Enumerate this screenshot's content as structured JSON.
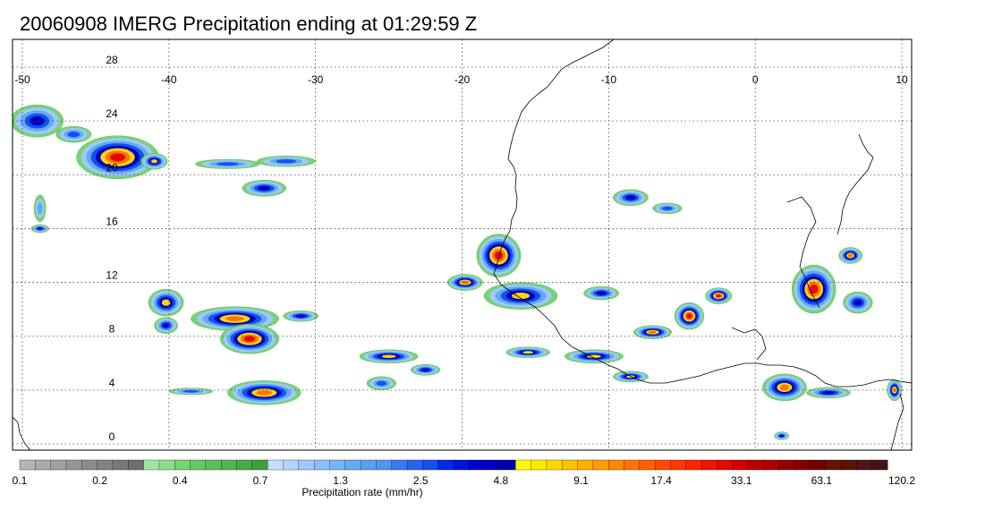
{
  "title": "20060908 IMERG Precipitation ending at 01:29:59 Z",
  "map": {
    "lon_range": [
      -50,
      10
    ],
    "lat_range": [
      -0.5,
      30
    ],
    "lon_ticks": [
      -50,
      -40,
      -30,
      -20,
      -10,
      0,
      10
    ],
    "lat_ticks": [
      0,
      4,
      8,
      12,
      16,
      20,
      24,
      28
    ],
    "gridlines": true,
    "coastline_color": "#000000",
    "lon_labels": [
      "-50",
      "-40",
      "-30",
      "-20",
      "-10",
      "0",
      "10"
    ],
    "lat_labels": [
      "0",
      "4",
      "8",
      "12",
      "16",
      "20",
      "24",
      "28"
    ]
  },
  "colorbar": {
    "label": "Precipitation rate (mm/hr)",
    "tick_labels": [
      "0.1",
      "0.2",
      "0.4",
      "0.7",
      "1.3",
      "2.5",
      "4.8",
      "9.1",
      "17.4",
      "33.1",
      "63.1",
      "120.2"
    ],
    "colors": [
      "#b4b4b4",
      "#aaaaaa",
      "#a0a0a0",
      "#969696",
      "#8c8c8c",
      "#828282",
      "#787878",
      "#6e6e6e",
      "#a0e6a0",
      "#8cdc8c",
      "#78d278",
      "#64c864",
      "#5abe5a",
      "#50b450",
      "#46aa46",
      "#3ca03c",
      "#c8dcff",
      "#b4d2ff",
      "#a0c8ff",
      "#8cbefa",
      "#78b4f5",
      "#64aaf0",
      "#5aa0f0",
      "#5096f0",
      "#3c78f0",
      "#2864f0",
      "#1450f0",
      "#0028e6",
      "#0014dc",
      "#0000d2",
      "#0000be",
      "#0000aa",
      "#ffff00",
      "#ffeb00",
      "#ffd700",
      "#ffc300",
      "#ffaf00",
      "#ff9b00",
      "#ff8700",
      "#ff7300",
      "#ff5f00",
      "#ff4b00",
      "#ff3700",
      "#ff2300",
      "#f01400",
      "#e10a00",
      "#d20000",
      "#be0000",
      "#aa0000",
      "#960000",
      "#820000",
      "#6e0000",
      "#641400",
      "#5a1400",
      "#501414",
      "#461414"
    ]
  },
  "precip_clusters": [
    {
      "lon": -49.0,
      "lat": 24.0,
      "rx": 1.8,
      "ry": 1.2,
      "peak": 2.5
    },
    {
      "lon": -46.5,
      "lat": 23.0,
      "rx": 1.2,
      "ry": 0.6,
      "peak": 1.3
    },
    {
      "lon": -43.5,
      "lat": 21.3,
      "rx": 2.8,
      "ry": 1.6,
      "peak": 17.4
    },
    {
      "lon": -41.0,
      "lat": 21.0,
      "rx": 0.9,
      "ry": 0.6,
      "peak": 4.8
    },
    {
      "lon": -36.0,
      "lat": 20.8,
      "rx": 2.2,
      "ry": 0.35,
      "peak": 1.3
    },
    {
      "lon": -32.0,
      "lat": 21.0,
      "rx": 2.0,
      "ry": 0.4,
      "peak": 1.3
    },
    {
      "lon": -33.5,
      "lat": 19.0,
      "rx": 1.5,
      "ry": 0.6,
      "peak": 2.5
    },
    {
      "lon": -48.8,
      "lat": 17.5,
      "rx": 0.4,
      "ry": 1.0,
      "peak": 0.7
    },
    {
      "lon": -48.8,
      "lat": 16.0,
      "rx": 0.6,
      "ry": 0.3,
      "peak": 2.5
    },
    {
      "lon": -40.2,
      "lat": 10.5,
      "rx": 1.2,
      "ry": 1.0,
      "peak": 4.8
    },
    {
      "lon": -40.2,
      "lat": 8.8,
      "rx": 0.8,
      "ry": 0.6,
      "peak": 2.5
    },
    {
      "lon": -35.5,
      "lat": 9.3,
      "rx": 3.0,
      "ry": 0.9,
      "peak": 9.1
    },
    {
      "lon": -34.5,
      "lat": 7.8,
      "rx": 2.0,
      "ry": 1.1,
      "peak": 17.4
    },
    {
      "lon": -31.0,
      "lat": 9.5,
      "rx": 1.2,
      "ry": 0.4,
      "peak": 2.5
    },
    {
      "lon": -33.5,
      "lat": 3.8,
      "rx": 2.5,
      "ry": 0.9,
      "peak": 9.1
    },
    {
      "lon": -38.5,
      "lat": 3.9,
      "rx": 1.5,
      "ry": 0.25,
      "peak": 1.3
    },
    {
      "lon": -25.0,
      "lat": 6.5,
      "rx": 2.0,
      "ry": 0.5,
      "peak": 4.8
    },
    {
      "lon": -22.5,
      "lat": 5.5,
      "rx": 1.0,
      "ry": 0.4,
      "peak": 2.5
    },
    {
      "lon": -25.5,
      "lat": 4.5,
      "rx": 1.0,
      "ry": 0.5,
      "peak": 1.3
    },
    {
      "lon": -19.8,
      "lat": 12.0,
      "rx": 1.2,
      "ry": 0.6,
      "peak": 9.1
    },
    {
      "lon": -17.5,
      "lat": 14.0,
      "rx": 1.5,
      "ry": 1.6,
      "peak": 17.4
    },
    {
      "lon": -16.0,
      "lat": 11.0,
      "rx": 2.5,
      "ry": 1.0,
      "peak": 4.8
    },
    {
      "lon": -15.5,
      "lat": 6.8,
      "rx": 1.5,
      "ry": 0.4,
      "peak": 4.8
    },
    {
      "lon": -11.0,
      "lat": 6.5,
      "rx": 2.0,
      "ry": 0.5,
      "peak": 4.8
    },
    {
      "lon": -8.5,
      "lat": 5.0,
      "rx": 1.2,
      "ry": 0.4,
      "peak": 4.8
    },
    {
      "lon": -10.5,
      "lat": 11.2,
      "rx": 1.2,
      "ry": 0.5,
      "peak": 2.5
    },
    {
      "lon": -7.0,
      "lat": 8.3,
      "rx": 1.3,
      "ry": 0.5,
      "peak": 9.1
    },
    {
      "lon": -4.5,
      "lat": 9.5,
      "rx": 1.0,
      "ry": 1.0,
      "peak": 17.4
    },
    {
      "lon": -2.5,
      "lat": 11.0,
      "rx": 0.9,
      "ry": 0.6,
      "peak": 17.4
    },
    {
      "lon": -8.5,
      "lat": 18.3,
      "rx": 1.2,
      "ry": 0.6,
      "peak": 2.5
    },
    {
      "lon": -6.0,
      "lat": 17.5,
      "rx": 1.0,
      "ry": 0.4,
      "peak": 1.3
    },
    {
      "lon": 4.0,
      "lat": 11.5,
      "rx": 1.5,
      "ry": 1.8,
      "peak": 17.4
    },
    {
      "lon": 6.5,
      "lat": 14.0,
      "rx": 0.8,
      "ry": 0.6,
      "peak": 9.1
    },
    {
      "lon": 7.0,
      "lat": 10.5,
      "rx": 1.0,
      "ry": 0.8,
      "peak": 2.5
    },
    {
      "lon": 2.0,
      "lat": 4.2,
      "rx": 1.5,
      "ry": 1.0,
      "peak": 9.1
    },
    {
      "lon": 5.0,
      "lat": 3.8,
      "rx": 1.5,
      "ry": 0.4,
      "peak": 2.5
    },
    {
      "lon": 9.5,
      "lat": 4.0,
      "rx": 0.5,
      "ry": 0.8,
      "peak": 9.1
    },
    {
      "lon": 1.8,
      "lat": 0.6,
      "rx": 0.5,
      "ry": 0.3,
      "peak": 2.5
    }
  ]
}
